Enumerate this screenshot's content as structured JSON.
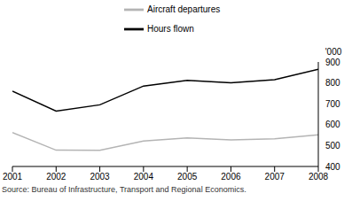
{
  "chart_data": {
    "type": "line",
    "ylabel": "'000",
    "annotations": [
      "Source: Bureau of Infrastructure, Transport and Regional Economics."
    ],
    "x": [
      2001,
      2002,
      2003,
      2004,
      2005,
      2006,
      2007,
      2008
    ],
    "xlim": [
      2001,
      2008
    ],
    "xticks": [
      2001,
      2002,
      2003,
      2004,
      2005,
      2006,
      2007,
      2008
    ],
    "series": [
      {
        "name": "Hours flown",
        "color": "#000000",
        "values": [
          760,
          665,
          695,
          785,
          812,
          800,
          815,
          865
        ]
      },
      {
        "name": "Aircraft departures",
        "color": "#b4b4b4",
        "values": [
          562,
          478,
          477,
          522,
          537,
          527,
          532,
          552
        ]
      }
    ],
    "ylim": [
      400,
      900
    ],
    "yticks": [
      400,
      500,
      600,
      700,
      800,
      900
    ],
    "grid": false,
    "legend": "top"
  }
}
